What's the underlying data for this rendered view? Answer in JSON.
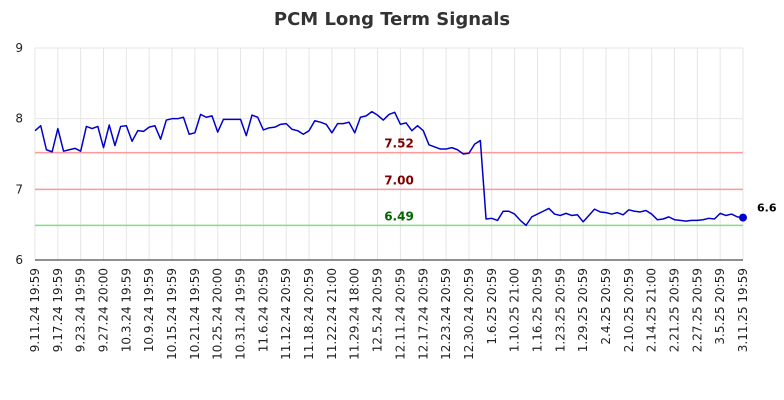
{
  "chart_data": {
    "type": "line",
    "title": "PCM Long Term Signals",
    "xlabel": "",
    "ylabel": "",
    "ylim": [
      6,
      9
    ],
    "yticks": [
      "6",
      "7",
      "8",
      "9"
    ],
    "grid": true,
    "x_tick_labels": [
      "9.11.24 19:59",
      "9.17.24 19:59",
      "9.23.24 19:59",
      "9.27.24 20:00",
      "10.3.24 19:59",
      "10.9.24 19:59",
      "10.15.24 19:59",
      "10.21.24 19:59",
      "10.25.24 20:00",
      "10.31.24 19:59",
      "11.6.24 20:59",
      "11.12.24 20:59",
      "11.18.24 20:59",
      "11.22.24 21:00",
      "11.29.24 18:00",
      "12.5.24 20:59",
      "12.11.24 20:59",
      "12.17.24 20:59",
      "12.23.24 20:59",
      "12.30.24 20:59",
      "1.6.25 20:59",
      "1.10.25 21:00",
      "1.16.25 20:59",
      "1.23.25 20:59",
      "1.29.25 20:59",
      "2.4.25 20:59",
      "2.10.25 20:59",
      "2.14.25 21:00",
      "2.21.25 20:59",
      "2.27.25 20:59",
      "3.5.25 20:59",
      "3.11.25 19:59"
    ],
    "series": [
      {
        "name": "",
        "color": "#0000cc",
        "values": [
          7.83,
          7.9,
          7.56,
          7.53,
          7.86,
          7.54,
          7.56,
          7.58,
          7.54,
          7.89,
          7.86,
          7.89,
          7.59,
          7.91,
          7.62,
          7.89,
          7.9,
          7.68,
          7.83,
          7.82,
          7.88,
          7.9,
          7.71,
          7.98,
          8.0,
          8.0,
          8.02,
          7.78,
          7.8,
          8.06,
          8.02,
          8.04,
          7.81,
          7.99,
          7.99,
          7.99,
          7.99,
          7.76,
          8.05,
          8.02,
          7.84,
          7.87,
          7.88,
          7.92,
          7.93,
          7.85,
          7.83,
          7.78,
          7.83,
          7.97,
          7.95,
          7.92,
          7.8,
          7.93,
          7.93,
          7.95,
          7.8,
          8.02,
          8.04,
          8.1,
          8.05,
          7.98,
          8.06,
          8.09,
          7.92,
          7.94,
          7.83,
          7.9,
          7.83,
          7.63,
          7.6,
          7.57,
          7.57,
          7.59,
          7.56,
          7.5,
          7.51,
          7.64,
          7.69,
          6.58,
          6.59,
          6.56,
          6.69,
          6.69,
          6.65,
          6.56,
          6.49,
          6.61,
          6.65,
          6.69,
          6.73,
          6.65,
          6.63,
          6.66,
          6.63,
          6.64,
          6.54,
          6.63,
          6.72,
          6.68,
          6.67,
          6.65,
          6.67,
          6.64,
          6.71,
          6.69,
          6.68,
          6.7,
          6.65,
          6.57,
          6.58,
          6.61,
          6.57,
          6.56,
          6.55,
          6.56,
          6.56,
          6.57,
          6.59,
          6.58,
          6.66,
          6.63,
          6.65,
          6.61,
          6.6
        ]
      }
    ],
    "hlines": [
      {
        "value": 7.52,
        "label": "7.52",
        "color": "#ff9999",
        "label_color": "#800000"
      },
      {
        "value": 7.0,
        "label": "7.00",
        "color": "#ff9999",
        "label_color": "#800000"
      },
      {
        "value": 6.49,
        "label": "6.49",
        "color": "#80e080",
        "label_color": "#006600"
      }
    ],
    "last_value_label": "6.6"
  }
}
